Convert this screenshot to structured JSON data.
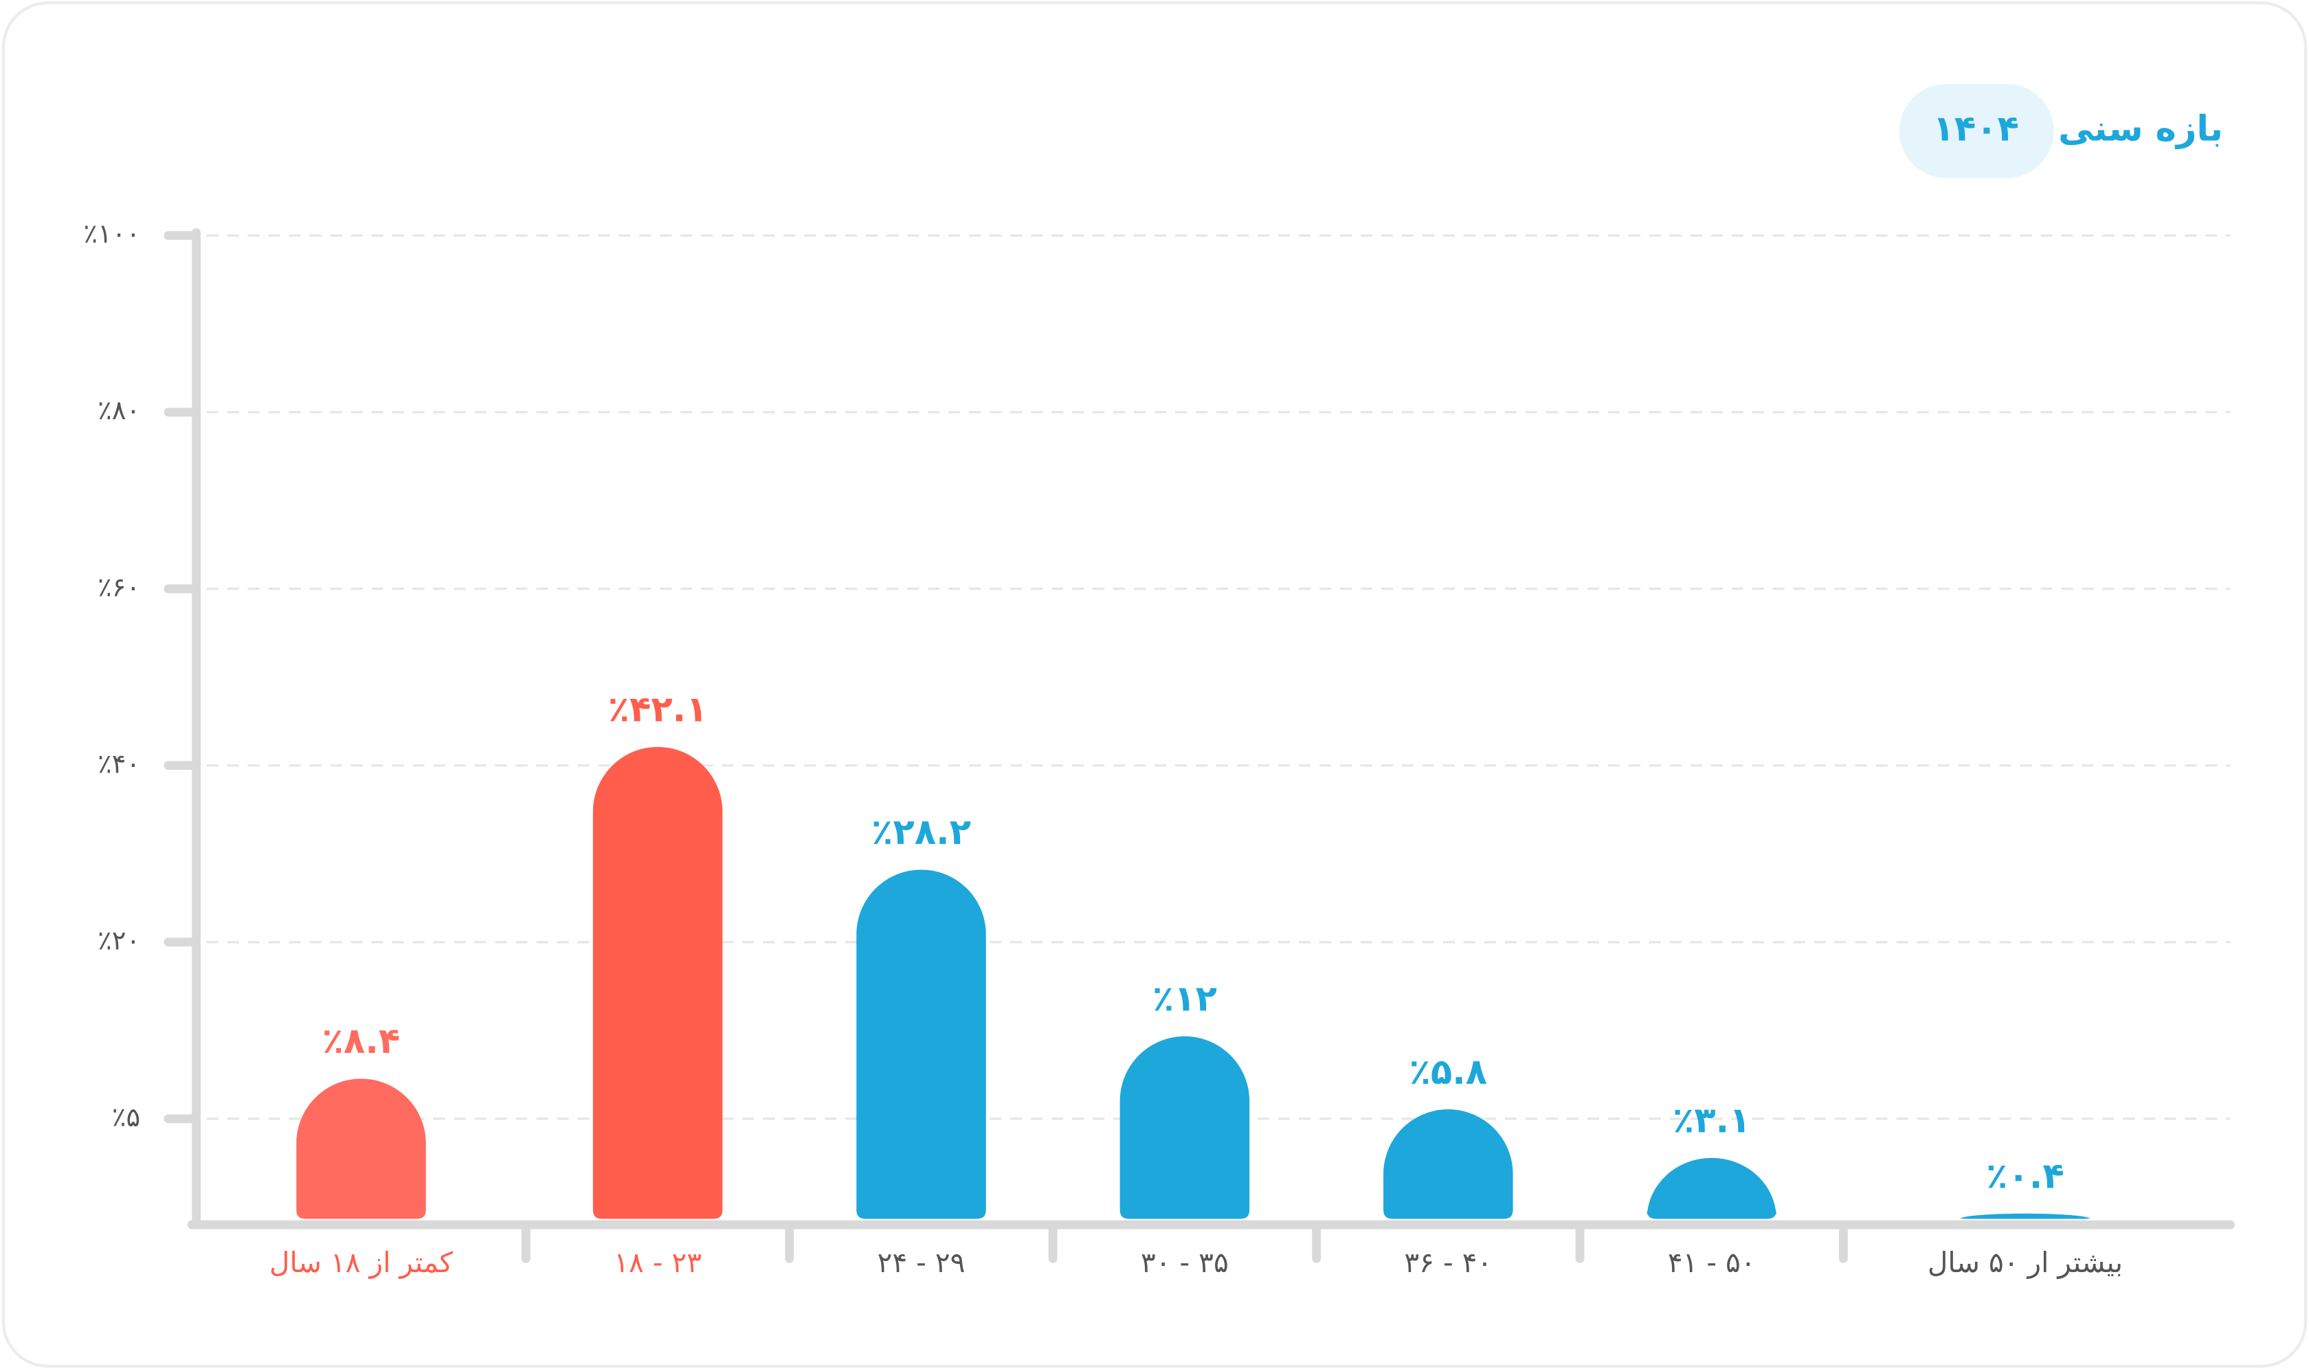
{
  "chart_data": {
    "type": "bar",
    "title": "بازه سنی",
    "year": "۱۴۰۴",
    "categories": [
      "کمتر از ۱۸ سال",
      "۱۸ - ۲۳",
      "۲۴ - ۲۹",
      "۳۰ - ۳۵",
      "۳۶ - ۴۰",
      "۴۱ - ۵۰",
      "بیشتر ار ۵۰ سال"
    ],
    "values": [
      8.4,
      42.1,
      28.2,
      12,
      5.8,
      3.1,
      0.4
    ],
    "value_labels": [
      "٪۸.۴",
      "٪۴۲.۱",
      "٪۲۸.۲",
      "٪۱۲",
      "٪۵.۸",
      "٪۳.۱",
      "٪۰.۴"
    ],
    "colors": [
      "#ff6b5e",
      "#ff5e4d",
      "#1ea7db",
      "#1ea7db",
      "#1ea7db",
      "#1ea7db",
      "#1ea7db"
    ],
    "label_colors": [
      "#ff5e4d",
      "#ff5e4d",
      "#555555",
      "#555555",
      "#555555",
      "#555555",
      "#555555"
    ],
    "ylim": [
      0,
      100
    ],
    "yticks": [
      {
        "value": 5,
        "label": "٪۵"
      },
      {
        "value": 20,
        "label": "٪۲۰"
      },
      {
        "value": 40,
        "label": "٪۴۰"
      },
      {
        "value": 60,
        "label": "٪۶۰"
      },
      {
        "value": 80,
        "label": "٪۸۰"
      },
      {
        "value": 100,
        "label": "٪۱۰۰"
      }
    ],
    "grid": true
  }
}
